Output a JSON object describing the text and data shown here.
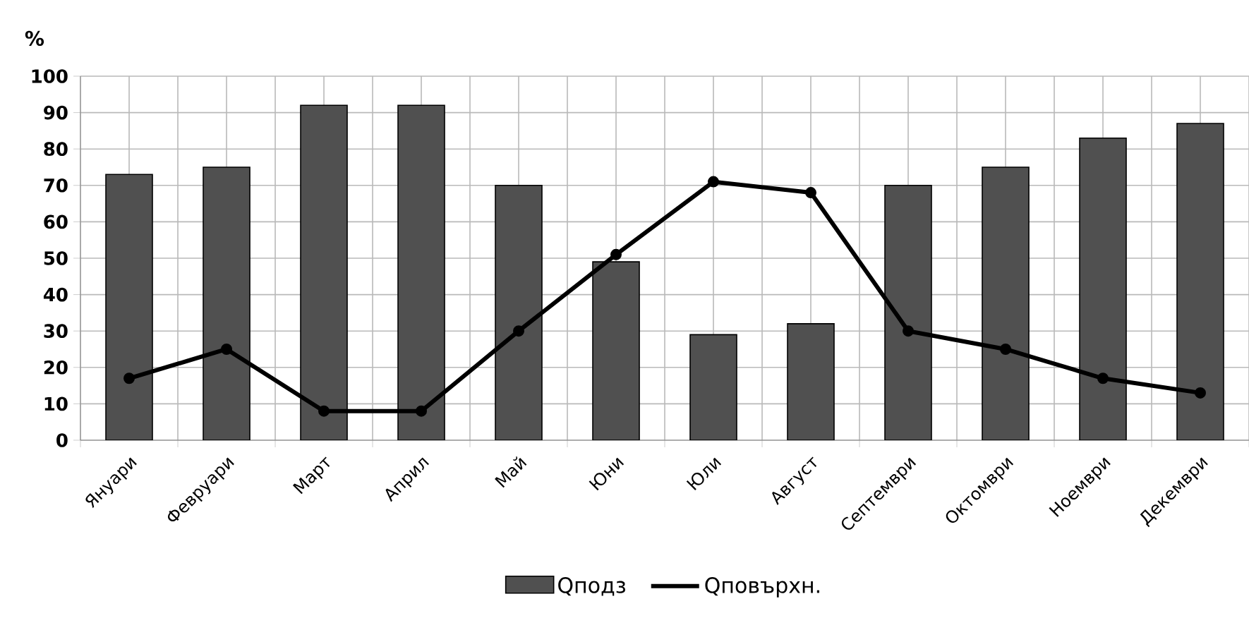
{
  "chart_data": {
    "type": "bar",
    "ylabel": "%",
    "categories": [
      "Януари",
      "Февруари",
      "Март",
      "Април",
      "Май",
      "Юни",
      "Юли",
      "Август",
      "Септември",
      "Октомври",
      "Ноември",
      "Декември"
    ],
    "series": [
      {
        "name": "Qподз",
        "color": "#505050",
        "values": [
          73,
          75,
          92,
          92,
          70,
          49,
          29,
          32,
          70,
          75,
          83,
          87
        ]
      },
      {
        "name": "Qповърхн.",
        "type": "line",
        "color": "#000000",
        "marker": "circle",
        "line_style": "solid",
        "values": [
          17,
          25,
          8,
          8,
          30,
          51,
          71,
          68,
          30,
          25,
          17,
          13
        ]
      }
    ],
    "ylim": [
      0,
      100
    ],
    "yticks": [
      0,
      10,
      20,
      30,
      40,
      50,
      60,
      70,
      80,
      90,
      100
    ],
    "grid": true,
    "legend": "bottom"
  }
}
